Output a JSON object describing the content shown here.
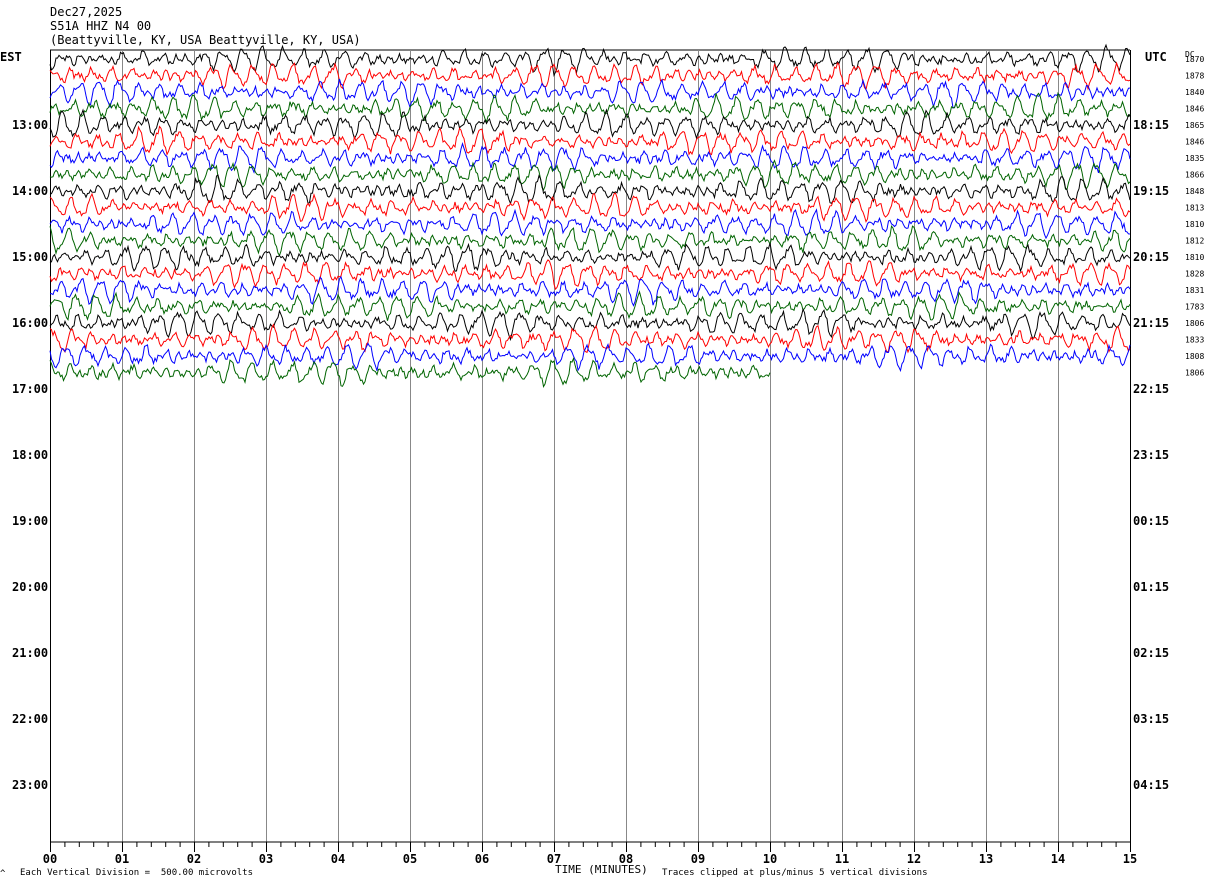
{
  "header": {
    "date": "Dec27,2025",
    "station": "S51A HHZ N4 00",
    "location": "(Beattyville, KY, USA Beattyville, KY, USA)"
  },
  "left_zone_label": "EST",
  "right_zone_label": "UTC",
  "dc_label": "DC",
  "footer": {
    "scale_note": "Each Vertical Division =  500.00 microvolts",
    "xaxis_title": "TIME (MINUTES)",
    "clip_note": "Traces clipped at plus/minus 5 vertical divisions",
    "corner_mark": "^"
  },
  "chart_data": {
    "type": "line",
    "title": "",
    "xlabel": "TIME (MINUTES)",
    "xlim": [
      0,
      15
    ],
    "x_ticks": [
      "00",
      "01",
      "02",
      "03",
      "04",
      "05",
      "06",
      "07",
      "08",
      "09",
      "10",
      "11",
      "12",
      "13",
      "14",
      "15"
    ],
    "hour_rows": [
      {
        "est": "13:00",
        "utc": "18:15"
      },
      {
        "est": "14:00",
        "utc": "19:15"
      },
      {
        "est": "15:00",
        "utc": "20:15"
      },
      {
        "est": "16:00",
        "utc": "21:15"
      },
      {
        "est": "17:00",
        "utc": "22:15"
      },
      {
        "est": "18:00",
        "utc": "23:15"
      },
      {
        "est": "19:00",
        "utc": "00:15"
      },
      {
        "est": "20:00",
        "utc": "01:15"
      },
      {
        "est": "21:00",
        "utc": "02:15"
      },
      {
        "est": "22:00",
        "utc": "03:15"
      },
      {
        "est": "23:00",
        "utc": "04:15"
      }
    ],
    "trace_colors": [
      "#000000",
      "#ff0000",
      "#0000ff",
      "#006400"
    ],
    "traces_per_hour": 4,
    "trace_count": 20,
    "last_trace_end_minute": 10,
    "dc_offsets": [
      "1870",
      "1878",
      "1840",
      "1846",
      "1865",
      "1846",
      "1835",
      "1866",
      "1848",
      "1813",
      "1810",
      "1812",
      "1810",
      "1828",
      "1831",
      "1783",
      "1806",
      "1833",
      "1808",
      "1806"
    ]
  }
}
